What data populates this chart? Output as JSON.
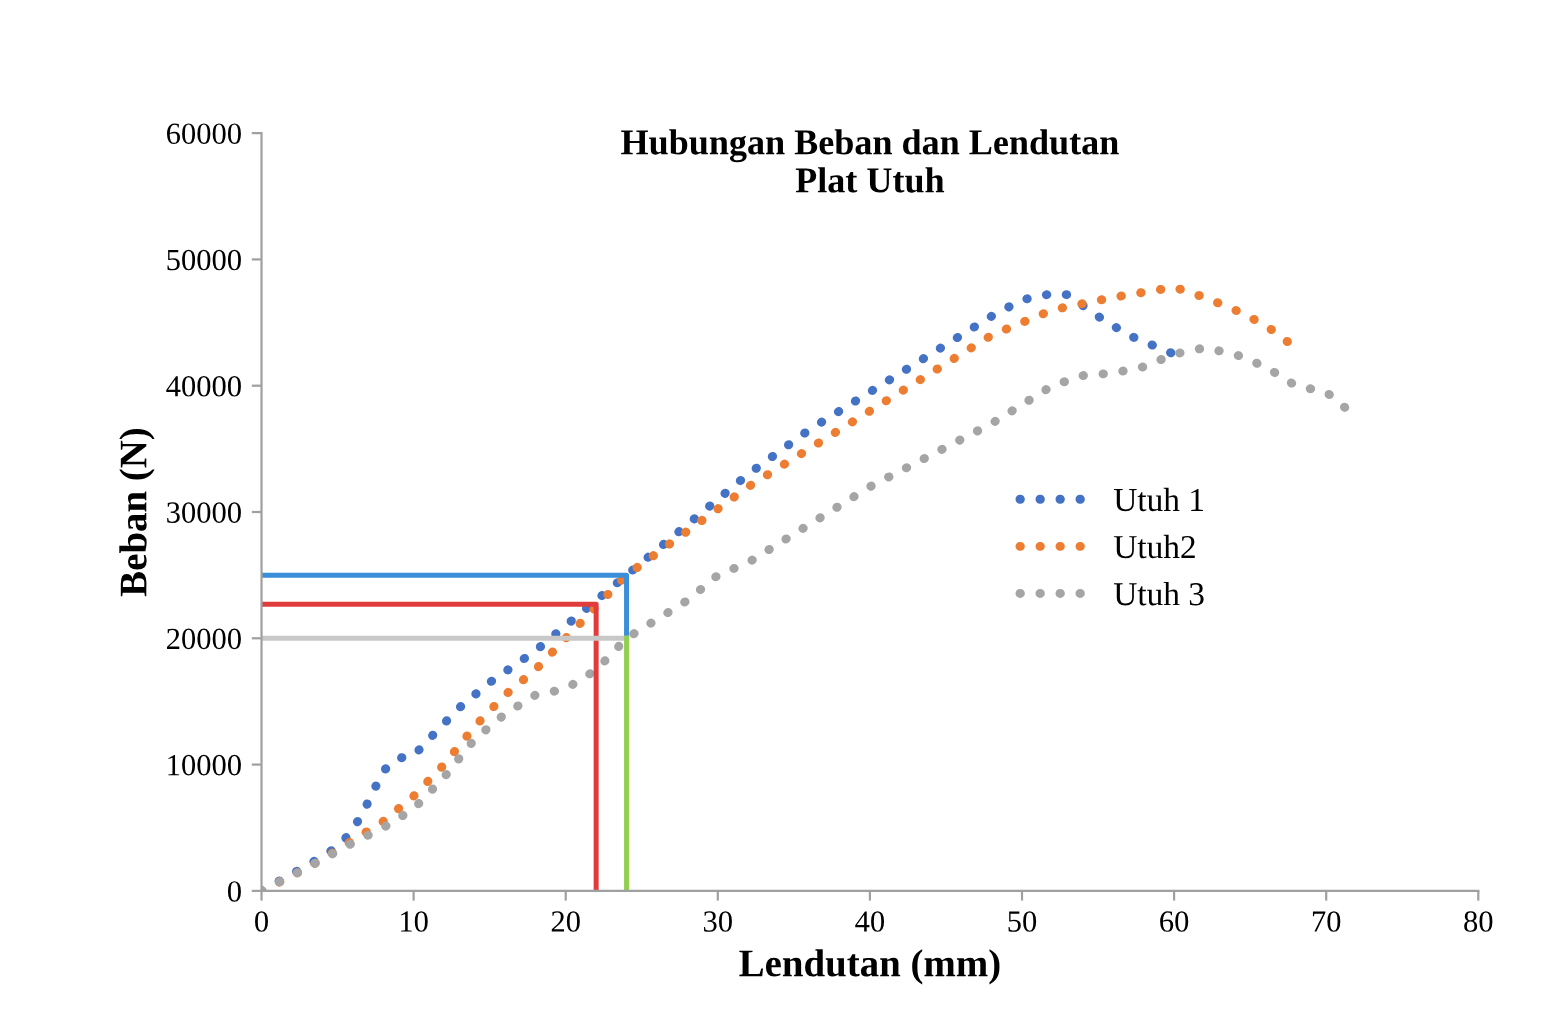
{
  "chart_data": {
    "type": "line",
    "title": "Hubungan Beban dan Lendutan\nPlat Utuh",
    "xlabel": "Lendutan (mm)",
    "ylabel": "Beban (N)",
    "xlim": [
      0,
      80
    ],
    "xticks": [
      0,
      10,
      20,
      30,
      40,
      50,
      60,
      70,
      80
    ],
    "ylim": [
      0,
      60000
    ],
    "yticks": [
      0,
      10000,
      20000,
      30000,
      40000,
      50000,
      60000
    ],
    "grid": false,
    "legend": "right",
    "line_style": "dotted",
    "marker": "none",
    "series": [
      {
        "name": "Utuh 1",
        "color": "#4472c4",
        "x": [
          0,
          3,
          5,
          6,
          7,
          8,
          9,
          10,
          11,
          13,
          15,
          18,
          20,
          22,
          24,
          28,
          32,
          36,
          40,
          44,
          48,
          50,
          52,
          53,
          55,
          57,
          59,
          60
        ],
        "values": [
          0,
          2000,
          3500,
          4800,
          7000,
          9500,
          10500,
          10700,
          12000,
          14500,
          16500,
          19000,
          21000,
          23000,
          25000,
          29000,
          33000,
          36500,
          39500,
          42500,
          45500,
          46800,
          47300,
          47200,
          45500,
          44000,
          43000,
          42500
        ]
      },
      {
        "name": "Utuh2",
        "color": "#ed7d31",
        "x": [
          0,
          2,
          4,
          6,
          8,
          10,
          12,
          14,
          16,
          18,
          20,
          22,
          24,
          28,
          32,
          36,
          40,
          44,
          48,
          52,
          56,
          60,
          62,
          64,
          66,
          68
        ],
        "values": [
          0,
          1200,
          2500,
          4000,
          5500,
          7500,
          10000,
          13000,
          15500,
          17500,
          20000,
          22500,
          25000,
          28500,
          32000,
          35000,
          38000,
          41000,
          44000,
          46000,
          47000,
          47800,
          47000,
          46000,
          44800,
          43000
        ]
      },
      {
        "name": "Utuh 3",
        "color": "#a5a5a5",
        "x": [
          0,
          2,
          4,
          6,
          8,
          10,
          12,
          14,
          16,
          18,
          20,
          22,
          24,
          26,
          28,
          30,
          32,
          36,
          40,
          44,
          48,
          52,
          54,
          56,
          58,
          60,
          62,
          64,
          66,
          68,
          70,
          71.5
        ],
        "values": [
          0,
          1200,
          2500,
          3800,
          5000,
          6500,
          9000,
          12000,
          14000,
          15500,
          16000,
          17500,
          20000,
          21500,
          23000,
          25000,
          26000,
          29000,
          32000,
          34500,
          37000,
          40000,
          40800,
          41000,
          41500,
          42500,
          43000,
          42500,
          41500,
          40000,
          39500,
          38000
        ]
      },
      {
        "type": "line",
        "line_style": "solid",
        "color": "#3a8fd8",
        "x": [
          0,
          24,
          24
        ],
        "values": [
          25000,
          25000,
          20000
        ]
      },
      {
        "type": "line",
        "line_style": "solid",
        "color": "#e03c3c",
        "x": [
          0,
          22,
          22
        ],
        "values": [
          22700,
          22700,
          0
        ]
      },
      {
        "type": "line",
        "line_style": "solid",
        "color": "#c8c8c8",
        "x": [
          0,
          24
        ],
        "values": [
          20000,
          20000
        ]
      },
      {
        "type": "line",
        "line_style": "solid",
        "color": "#92d050",
        "x": [
          24,
          24
        ],
        "values": [
          20000,
          0
        ]
      }
    ]
  }
}
